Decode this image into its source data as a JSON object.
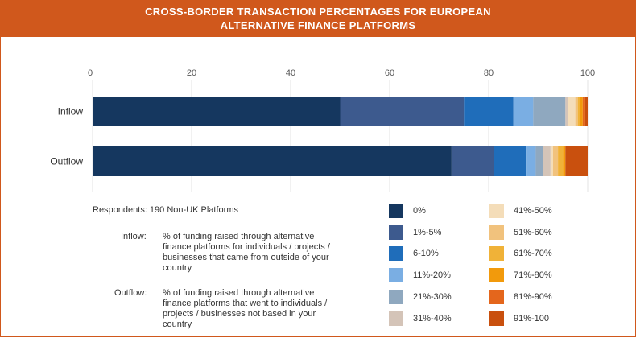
{
  "header": {
    "title_line1": "CROSS-BORDER TRANSACTION PERCENTAGES FOR EUROPEAN",
    "title_line2": "ALTERNATIVE FINANCE PLATFORMS"
  },
  "colors": {
    "header_bg": "#d0581c",
    "0%": "#15375f",
    "1%-5%": "#3d5a8e",
    "6-10%": "#1f6dba",
    "11%-20%": "#7aaee3",
    "21%-30%": "#8fa8bf",
    "31%-40%": "#d4c4b8",
    "41%-50%": "#f4ddb9",
    "51%-60%": "#f1c27d",
    "61%-70%": "#f0b238",
    "71%-80%": "#f29a0c",
    "81%-90%": "#e4661c",
    "91%-100": "#c9500e"
  },
  "chart_data": {
    "type": "bar",
    "orientation": "horizontal",
    "stacked": true,
    "title": "CROSS-BORDER TRANSACTION PERCENTAGES FOR EUROPEAN ALTERNATIVE FINANCE PLATFORMS",
    "categories": [
      "Inflow",
      "Outflow"
    ],
    "xlim": [
      0,
      100
    ],
    "xticks": [
      0,
      20,
      40,
      60,
      80,
      100
    ],
    "grid": true,
    "legend_position": "bottom-right",
    "series": [
      {
        "name": "0%",
        "values": [
          50.0,
          72.5
        ]
      },
      {
        "name": "1%-5%",
        "values": [
          25.0,
          8.5
        ]
      },
      {
        "name": "6-10%",
        "values": [
          10.0,
          6.5
        ]
      },
      {
        "name": "11%-20%",
        "values": [
          4.0,
          2.0
        ]
      },
      {
        "name": "21%-30%",
        "values": [
          6.5,
          1.5
        ]
      },
      {
        "name": "31%-40%",
        "values": [
          0.5,
          1.5
        ]
      },
      {
        "name": "41%-50%",
        "values": [
          1.5,
          0.5
        ]
      },
      {
        "name": "51%-60%",
        "values": [
          0.5,
          1.0
        ]
      },
      {
        "name": "61%-70%",
        "values": [
          0.5,
          1.0
        ]
      },
      {
        "name": "71%-80%",
        "values": [
          0.5,
          0.5
        ]
      },
      {
        "name": "81%-90%",
        "values": [
          0.5,
          0.0
        ]
      },
      {
        "name": "91%-100",
        "values": [
          0.5,
          4.5
        ]
      }
    ]
  },
  "notes": {
    "respondents": "Respondents: 190 Non-UK Platforms",
    "inflow_label": "Inflow:",
    "inflow_text": "% of funding raised through alternative finance platforms for individuals / projects / businesses that came from outside of your country",
    "outflow_label": "Outflow:",
    "outflow_text": "% of funding raised through alternative finance platforms that went to individuals / projects / businesses not based in your country"
  }
}
